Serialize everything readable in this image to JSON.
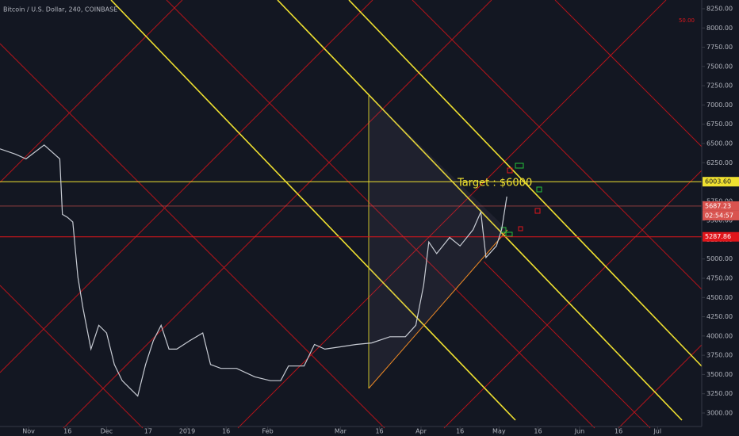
{
  "chart_data": {
    "type": "line",
    "title": "Bitcoin / U.S. Dollar, 240, COINBASE",
    "color": "#c8ccd4",
    "x": [
      -11,
      -5,
      -1,
      6,
      12,
      13,
      15,
      17,
      19,
      21,
      24,
      27,
      30,
      33,
      36,
      39,
      42,
      45,
      48,
      51,
      54,
      57,
      62,
      67,
      70,
      74,
      80,
      87,
      93,
      97,
      100,
      106,
      110,
      114,
      120,
      126,
      132,
      139,
      145,
      149,
      152,
      154,
      157,
      162,
      166,
      171,
      174,
      176,
      180,
      182,
      184
    ],
    "values": [
      6430,
      6360,
      6300,
      6480,
      6300,
      5580,
      5540,
      5480,
      4760,
      4350,
      3830,
      4140,
      4040,
      3630,
      3420,
      3320,
      3220,
      3630,
      3940,
      4140,
      3830,
      3830,
      3940,
      4040,
      3630,
      3580,
      3580,
      3470,
      3420,
      3420,
      3610,
      3610,
      3890,
      3830,
      3860,
      3890,
      3910,
      3990,
      3990,
      4140,
      4660,
      5220,
      5070,
      5280,
      5170,
      5380,
      5610,
      5020,
      5170,
      5380,
      5810
    ],
    "xlim": [
      -11,
      259
    ],
    "xticks": [
      {
        "value": 0,
        "label": "Nov"
      },
      {
        "value": 15,
        "label": "16"
      },
      {
        "value": 30,
        "label": "Dec"
      },
      {
        "value": 46,
        "label": "17"
      },
      {
        "value": 61,
        "label": "2019"
      },
      {
        "value": 76,
        "label": "16"
      },
      {
        "value": 92,
        "label": "Feb"
      },
      {
        "value": 120,
        "label": "Mar"
      },
      {
        "value": 135,
        "label": "16"
      },
      {
        "value": 151,
        "label": "Apr"
      },
      {
        "value": 166,
        "label": "16"
      },
      {
        "value": 181,
        "label": "May"
      },
      {
        "value": 196,
        "label": "16"
      },
      {
        "value": 212,
        "label": "Jun"
      },
      {
        "value": 227,
        "label": "16"
      },
      {
        "value": 242,
        "label": "Jul"
      }
    ],
    "ylim": [
      2825,
      8363
    ],
    "yticks": [
      {
        "value": 3000,
        "label": "3000.00"
      },
      {
        "value": 3250,
        "label": "3250.00"
      },
      {
        "value": 3500,
        "label": "3500.00"
      },
      {
        "value": 3750,
        "label": "3750.00"
      },
      {
        "value": 4000,
        "label": "4000.00"
      },
      {
        "value": 4250,
        "label": "4250.00"
      },
      {
        "value": 4500,
        "label": "4500.00"
      },
      {
        "value": 4750,
        "label": "4750.00"
      },
      {
        "value": 5000,
        "label": "5000.00"
      },
      {
        "value": 5250,
        "label": "5250.00"
      },
      {
        "value": 5500,
        "label": "5500.00"
      },
      {
        "value": 5750,
        "label": "5750.00"
      },
      {
        "value": 6000,
        "label": "6000.00"
      },
      {
        "value": 6250,
        "label": "6250.00"
      },
      {
        "value": 6500,
        "label": "6500.00"
      },
      {
        "value": 6750,
        "label": "6750.00"
      },
      {
        "value": 7000,
        "label": "7000.00"
      },
      {
        "value": 7250,
        "label": "7250.00"
      },
      {
        "value": 7500,
        "label": "7500.00"
      },
      {
        "value": 7750,
        "label": "7750.00"
      },
      {
        "value": 8000,
        "label": "8000.00"
      },
      {
        "value": 8250,
        "label": "8250.00"
      }
    ],
    "price_lines": [
      {
        "value": 6003.6,
        "label": "6003.60",
        "color": "#f0e130"
      },
      {
        "value": 5687.23,
        "color": "#d9534f"
      },
      {
        "value": 5287.86,
        "color": "#e0161b"
      }
    ],
    "annotations": {
      "target": "Target : $6000",
      "countdown": "02:54:57",
      "marker": "50.00"
    }
  }
}
